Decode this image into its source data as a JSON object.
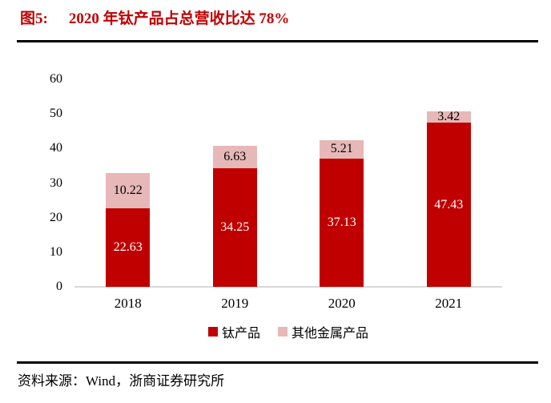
{
  "header": {
    "figure_label": "图5:",
    "title": "2020 年钛产品占总营收比达 78%",
    "title_color": "#C00000"
  },
  "chart_data": {
    "type": "bar",
    "stacked": true,
    "categories": [
      "2018",
      "2019",
      "2020",
      "2021"
    ],
    "series": [
      {
        "name": "钛产品",
        "color": "#C00000",
        "label_color": "#FFFFFF",
        "values": [
          22.63,
          34.25,
          37.13,
          47.43
        ]
      },
      {
        "name": "其他金属产品",
        "color": "#E6B8B7",
        "label_color": "#000000",
        "values": [
          10.22,
          6.63,
          5.21,
          3.42
        ]
      }
    ],
    "ylim": [
      0,
      60
    ],
    "yticks": [
      0,
      10,
      20,
      30,
      40,
      50,
      60
    ],
    "xlabel": "",
    "ylabel": "",
    "grid": false,
    "legend_position": "bottom",
    "data_labels": true,
    "baseline_color": "#D9D9D9"
  },
  "footer": {
    "source": "资料来源：Wind，浙商证券研究所"
  }
}
